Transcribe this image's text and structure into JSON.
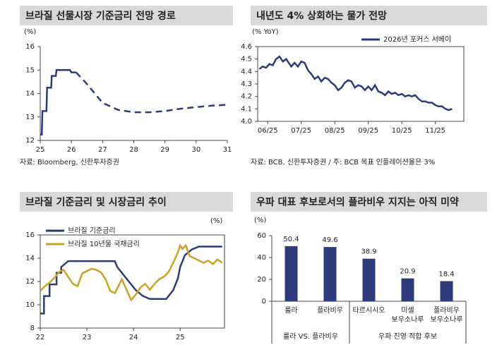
{
  "chart_data": [
    {
      "type": "line",
      "title": "브라질 선물시장 기준금리 전망 경로",
      "y_label": "(%)",
      "source": "자료: Bloomberg, 신한투자증권",
      "xlim": [
        25,
        31
      ],
      "xticks": [
        25,
        26,
        27,
        28,
        29,
        30,
        31
      ],
      "ylim": [
        12,
        16
      ],
      "yticks": [
        12,
        13,
        14,
        15,
        16
      ],
      "frame": false,
      "series": [
        {
          "color": "#2e3a7a",
          "dashed": false,
          "x": [
            25.0,
            25.05,
            25.07,
            25.2,
            25.22,
            25.35,
            25.37,
            25.5,
            25.52,
            25.95,
            26.0,
            26.15
          ],
          "values": [
            12.25,
            12.25,
            13.25,
            13.25,
            14.25,
            14.25,
            14.75,
            14.75,
            15.0,
            15.0,
            14.9,
            14.9
          ]
        },
        {
          "color": "#2e3a7a",
          "dashed": true,
          "x": [
            26.15,
            26.5,
            27.0,
            27.5,
            28.0,
            28.5,
            29.0,
            29.5,
            30.0,
            30.5,
            31.0
          ],
          "values": [
            14.9,
            14.4,
            13.6,
            13.3,
            13.2,
            13.2,
            13.25,
            13.35,
            13.42,
            13.48,
            13.52
          ]
        }
      ]
    },
    {
      "type": "line",
      "title": "내년도 4% 상회하는 물가 전망",
      "y_label": "(% YoY)",
      "source": "자료: BCB, 신한투자증권 / 주: BCB 목표 인플레이션율은 3%",
      "xlim": [
        5.7,
        11.85
      ],
      "xticks": [
        {
          "value": 6,
          "label": "06/25"
        },
        {
          "value": 7,
          "label": "07/25"
        },
        {
          "value": 8,
          "label": "08/25"
        },
        {
          "value": 9,
          "label": "09/25"
        },
        {
          "value": 10,
          "label": "10/25"
        },
        {
          "value": 11,
          "label": "11/25"
        }
      ],
      "ylim": [
        4.0,
        4.6
      ],
      "yticks": [
        {
          "value": 4,
          "label": "4.0"
        },
        4.1,
        4.2,
        4.3,
        4.4,
        4.5,
        4.6
      ],
      "frame": true,
      "legend": "upper right",
      "series": [
        {
          "name": "2026년 포커스 서베이",
          "color": "#2e3a7a",
          "dashed": false,
          "x": [
            5.75,
            5.85,
            5.95,
            6.05,
            6.15,
            6.25,
            6.35,
            6.45,
            6.55,
            6.7,
            6.8,
            6.9,
            7.0,
            7.1,
            7.2,
            7.3,
            7.4,
            7.5,
            7.6,
            7.7,
            7.8,
            7.9,
            8.0,
            8.1,
            8.2,
            8.3,
            8.4,
            8.5,
            8.6,
            8.7,
            8.8,
            8.9,
            9.0,
            9.1,
            9.2,
            9.3,
            9.4,
            9.5,
            9.6,
            9.7,
            9.8,
            9.9,
            10.0,
            10.1,
            10.2,
            10.3,
            10.4,
            10.5,
            10.6,
            10.7,
            10.8,
            10.9,
            11.0,
            11.1,
            11.2,
            11.3,
            11.4,
            11.5
          ],
          "values": [
            4.42,
            4.44,
            4.43,
            4.46,
            4.45,
            4.5,
            4.52,
            4.48,
            4.5,
            4.44,
            4.47,
            4.44,
            4.48,
            4.47,
            4.41,
            4.38,
            4.34,
            4.36,
            4.32,
            4.35,
            4.34,
            4.31,
            4.29,
            4.25,
            4.27,
            4.31,
            4.33,
            4.32,
            4.27,
            4.29,
            4.28,
            4.25,
            4.28,
            4.25,
            4.29,
            4.24,
            4.23,
            4.21,
            4.24,
            4.22,
            4.23,
            4.21,
            4.22,
            4.2,
            4.21,
            4.2,
            4.21,
            4.18,
            4.16,
            4.16,
            4.15,
            4.15,
            4.13,
            4.12,
            4.12,
            4.1,
            4.09,
            4.1
          ]
        }
      ]
    },
    {
      "type": "line",
      "title": "브라질 기준금리 및 시장금리 추이",
      "y_label": "(%)",
      "xlim": [
        22,
        25.95
      ],
      "xticks": [
        22,
        23,
        24,
        25
      ],
      "ylim": [
        8,
        16
      ],
      "yticks": [
        8,
        10,
        12,
        14,
        16
      ],
      "frame": true,
      "legend": "upper left",
      "series": [
        {
          "name": "브라질 기준금리",
          "color": "#2e3a7a",
          "dashed": false,
          "x": [
            22.0,
            22.08,
            22.08,
            22.2,
            22.2,
            22.35,
            22.35,
            22.45,
            22.45,
            22.6,
            23.6,
            23.65,
            23.75,
            23.85,
            23.95,
            24.05,
            24.2,
            24.35,
            24.7,
            24.75,
            24.85,
            24.95,
            25.0,
            25.1,
            25.25,
            25.4,
            25.9
          ],
          "values": [
            9.25,
            9.25,
            10.75,
            10.75,
            11.75,
            11.75,
            12.75,
            12.75,
            13.25,
            13.75,
            13.75,
            13.25,
            12.75,
            12.25,
            11.75,
            11.25,
            10.75,
            10.5,
            10.5,
            10.75,
            11.25,
            12.25,
            13.25,
            14.25,
            14.75,
            15.0,
            15.0
          ]
        },
        {
          "name": "브라질 10년물 국채금리",
          "color": "#c9a227",
          "dashed": false,
          "x": [
            22.0,
            22.1,
            22.2,
            22.3,
            22.4,
            22.5,
            22.6,
            22.7,
            22.8,
            22.9,
            23.0,
            23.1,
            23.2,
            23.3,
            23.4,
            23.5,
            23.6,
            23.7,
            23.75,
            23.85,
            23.95,
            24.05,
            24.15,
            24.25,
            24.35,
            24.45,
            24.55,
            24.65,
            24.75,
            24.85,
            24.95,
            25.0,
            25.05,
            25.12,
            25.2,
            25.3,
            25.4,
            25.5,
            25.6,
            25.7,
            25.8,
            25.9
          ],
          "values": [
            11.2,
            11.6,
            11.9,
            12.3,
            12.8,
            13.0,
            12.4,
            11.8,
            11.6,
            12.7,
            12.9,
            13.1,
            13.0,
            12.8,
            12.2,
            11.2,
            11.0,
            11.8,
            12.2,
            11.3,
            10.4,
            10.9,
            11.5,
            11.8,
            11.3,
            11.8,
            12.2,
            12.4,
            12.8,
            13.6,
            14.5,
            15.1,
            14.8,
            15.1,
            14.2,
            14.0,
            13.8,
            13.6,
            13.8,
            13.5,
            13.9,
            13.6
          ]
        }
      ]
    },
    {
      "type": "bar",
      "title": "우파 대표 후보로서의 플라비우 지지는 아직 미약",
      "y_label": "(%)",
      "categories": [
        "룰라",
        "플라비우",
        "타르시시오",
        "미셸\n보우소나루",
        "플라비우\n보우소나루"
      ],
      "values": [
        50.4,
        49.6,
        38.9,
        20.9,
        18.4
      ],
      "color": "#2e3a7a",
      "ylim": [
        0,
        60
      ],
      "yticks": [
        0,
        20,
        40,
        60
      ],
      "groups": [
        {
          "label": "룰라 VS. 플라비우",
          "size": 2
        },
        {
          "label": "우파 진영 적합 후보",
          "size": 3
        }
      ]
    }
  ]
}
